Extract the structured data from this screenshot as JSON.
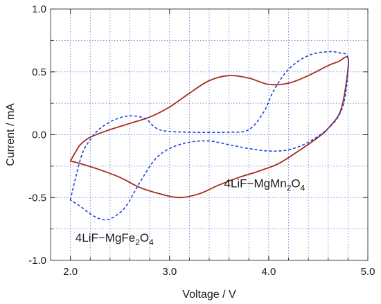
{
  "chart_data": {
    "type": "line",
    "title": "",
    "xlabel": "Voltage / V",
    "ylabel": "Current / mA",
    "xlim": [
      1.8,
      5.0
    ],
    "ylim": [
      -1.0,
      1.0
    ],
    "xticks": [
      "2.0",
      "3.0",
      "4.0",
      "5.0"
    ],
    "xtick_values": [
      2.0,
      3.0,
      4.0,
      5.0
    ],
    "yticks": [
      "1.0",
      "0.5",
      "0.0",
      "-0.5",
      "-1.0"
    ],
    "ytick_values": [
      1.0,
      0.5,
      0.0,
      -0.5,
      -1.0
    ],
    "grid": true,
    "series": [
      {
        "label": "4LiF-MgMn2O4",
        "color": "#a52a1a",
        "style": "solid",
        "points": [
          [
            2.0,
            -0.21
          ],
          [
            2.05,
            -0.14
          ],
          [
            2.1,
            -0.08
          ],
          [
            2.2,
            -0.02
          ],
          [
            2.4,
            0.04
          ],
          [
            2.6,
            0.09
          ],
          [
            2.8,
            0.14
          ],
          [
            3.0,
            0.22
          ],
          [
            3.2,
            0.33
          ],
          [
            3.4,
            0.43
          ],
          [
            3.6,
            0.47
          ],
          [
            3.8,
            0.45
          ],
          [
            4.0,
            0.4
          ],
          [
            4.2,
            0.41
          ],
          [
            4.4,
            0.47
          ],
          [
            4.6,
            0.55
          ],
          [
            4.7,
            0.58
          ],
          [
            4.8,
            0.61
          ],
          [
            4.78,
            0.4
          ],
          [
            4.72,
            0.18
          ],
          [
            4.6,
            0.05
          ],
          [
            4.5,
            -0.02
          ],
          [
            4.3,
            -0.13
          ],
          [
            4.1,
            -0.23
          ],
          [
            3.9,
            -0.29
          ],
          [
            3.7,
            -0.34
          ],
          [
            3.5,
            -0.4
          ],
          [
            3.3,
            -0.47
          ],
          [
            3.1,
            -0.5
          ],
          [
            2.9,
            -0.47
          ],
          [
            2.7,
            -0.42
          ],
          [
            2.5,
            -0.34
          ],
          [
            2.3,
            -0.28
          ],
          [
            2.1,
            -0.23
          ],
          [
            2.0,
            -0.21
          ]
        ]
      },
      {
        "label": "4LiF-MgFe2O4",
        "color": "#1a3fe0",
        "style": "dashed",
        "points": [
          [
            2.0,
            -0.52
          ],
          [
            2.05,
            -0.35
          ],
          [
            2.12,
            -0.15
          ],
          [
            2.2,
            -0.04
          ],
          [
            2.3,
            0.05
          ],
          [
            2.45,
            0.12
          ],
          [
            2.6,
            0.15
          ],
          [
            2.75,
            0.13
          ],
          [
            2.85,
            0.06
          ],
          [
            2.95,
            0.03
          ],
          [
            3.2,
            0.02
          ],
          [
            3.6,
            0.02
          ],
          [
            3.8,
            0.04
          ],
          [
            3.95,
            0.18
          ],
          [
            4.05,
            0.35
          ],
          [
            4.2,
            0.52
          ],
          [
            4.4,
            0.63
          ],
          [
            4.6,
            0.66
          ],
          [
            4.72,
            0.65
          ],
          [
            4.8,
            0.61
          ],
          [
            4.78,
            0.35
          ],
          [
            4.72,
            0.17
          ],
          [
            4.6,
            0.05
          ],
          [
            4.4,
            -0.06
          ],
          [
            4.2,
            -0.12
          ],
          [
            4.0,
            -0.13
          ],
          [
            3.8,
            -0.11
          ],
          [
            3.6,
            -0.08
          ],
          [
            3.4,
            -0.05
          ],
          [
            3.2,
            -0.06
          ],
          [
            3.0,
            -0.11
          ],
          [
            2.85,
            -0.2
          ],
          [
            2.7,
            -0.38
          ],
          [
            2.55,
            -0.58
          ],
          [
            2.4,
            -0.67
          ],
          [
            2.3,
            -0.67
          ],
          [
            2.2,
            -0.63
          ],
          [
            2.1,
            -0.57
          ],
          [
            2.0,
            -0.52
          ]
        ]
      }
    ],
    "annotations": [
      {
        "id": "mn",
        "text_prefix": "4LiF−MgMn",
        "sub1": "2",
        "mid": "O",
        "sub2": "4",
        "x": 3.55,
        "y": -0.42
      },
      {
        "id": "fe",
        "text_prefix": "4LiF−MgFe",
        "sub1": "2",
        "mid": "O",
        "sub2": "4",
        "x": 2.05,
        "y": -0.85
      }
    ]
  }
}
